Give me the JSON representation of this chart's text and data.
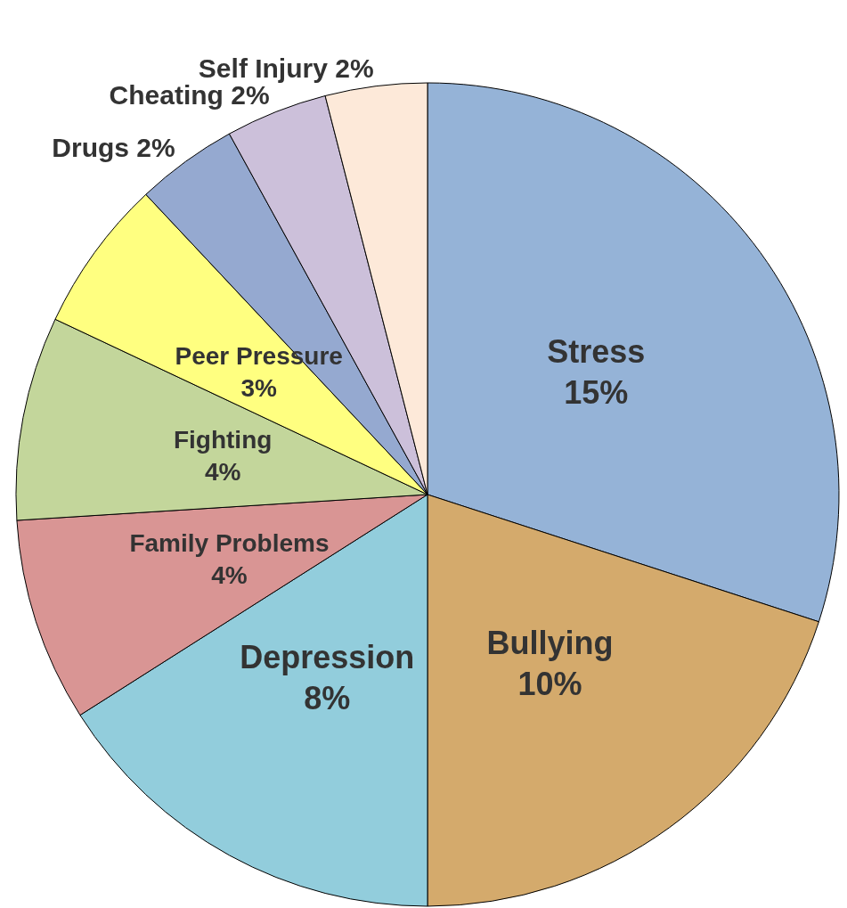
{
  "chart_data": {
    "type": "pie",
    "categories": [
      "Stress",
      "Bullying",
      "Depression",
      "Family Problems",
      "Fighting",
      "Peer Pressure",
      "Drugs",
      "Cheating",
      "Self Injury"
    ],
    "values": [
      15,
      10,
      8,
      4,
      4,
      3,
      2,
      2,
      2
    ],
    "value_labels": [
      "15%",
      "10%",
      "8%",
      "4%",
      "4%",
      "3%",
      "2%",
      "2%",
      "2%"
    ],
    "colors": [
      "#95b3d7",
      "#d4aa6c",
      "#92cddc",
      "#d99594",
      "#c3d69b",
      "#ffff80",
      "#95a9d0",
      "#ccc0da",
      "#fde9d9"
    ],
    "legend": false
  }
}
